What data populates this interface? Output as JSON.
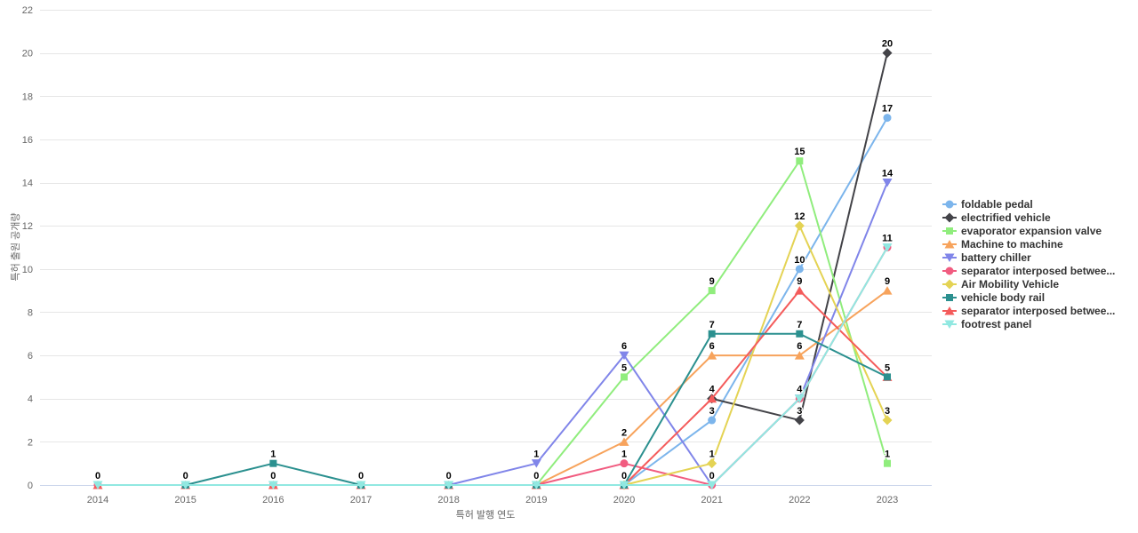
{
  "chart": {
    "background": "#ffffff",
    "grid_color": "#e6e6e6",
    "axis_line_color": "#ccd6eb",
    "tick_label_color": "#666666",
    "data_label_color": "#000000",
    "legend_text_color": "#333333"
  },
  "chart_data": {
    "type": "line",
    "title": "",
    "xlabel": "특허 발행 연도",
    "ylabel": "특허 출원 공개량",
    "x": [
      2014,
      2015,
      2016,
      2017,
      2018,
      2019,
      2020,
      2021,
      2022,
      2023
    ],
    "ylim": [
      0,
      22
    ],
    "ytick_step": 2,
    "grid": true,
    "legend_position": "right",
    "data_labels": true,
    "series": [
      {
        "name": "foldable pedal",
        "color": "#7cb5ec",
        "marker": "circle",
        "values": [
          null,
          null,
          null,
          null,
          null,
          null,
          0,
          3,
          10,
          17
        ]
      },
      {
        "name": "electrified vehicle",
        "color": "#434348",
        "marker": "diamond",
        "values": [
          null,
          null,
          null,
          null,
          null,
          null,
          null,
          4,
          3,
          20
        ]
      },
      {
        "name": "evaporator expansion valve",
        "color": "#90ed7d",
        "marker": "square",
        "values": [
          null,
          null,
          null,
          null,
          null,
          0,
          5,
          9,
          15,
          1
        ]
      },
      {
        "name": "Machine to machine",
        "color": "#f7a35c",
        "marker": "triangle",
        "values": [
          null,
          null,
          null,
          null,
          null,
          0,
          2,
          6,
          6,
          9
        ]
      },
      {
        "name": "battery chiller",
        "color": "#8085e9",
        "marker": "triangle-down",
        "values": [
          null,
          null,
          null,
          null,
          0,
          1,
          6,
          0,
          4,
          14
        ]
      },
      {
        "name": "separator interposed betwee...",
        "color": "#f15c80",
        "marker": "circle",
        "values": [
          0,
          0,
          0,
          0,
          0,
          0,
          1,
          0,
          4,
          11
        ]
      },
      {
        "name": "Air Mobility Vehicle",
        "color": "#e4d354",
        "marker": "diamond",
        "values": [
          null,
          null,
          null,
          null,
          null,
          null,
          0,
          1,
          12,
          3
        ]
      },
      {
        "name": "vehicle body rail",
        "color": "#2b908f",
        "marker": "square",
        "values": [
          null,
          0,
          1,
          0,
          0,
          0,
          0,
          7,
          7,
          5
        ]
      },
      {
        "name": "separator interposed betwee...",
        "color": "#f45b5b",
        "marker": "triangle",
        "values": [
          0,
          0,
          0,
          0,
          0,
          0,
          0,
          4,
          9,
          5
        ]
      },
      {
        "name": "footrest panel",
        "color": "#91e8e1",
        "marker": "triangle-down",
        "values": [
          0,
          0,
          0,
          0,
          0,
          0,
          0,
          0,
          4,
          11
        ]
      }
    ]
  }
}
